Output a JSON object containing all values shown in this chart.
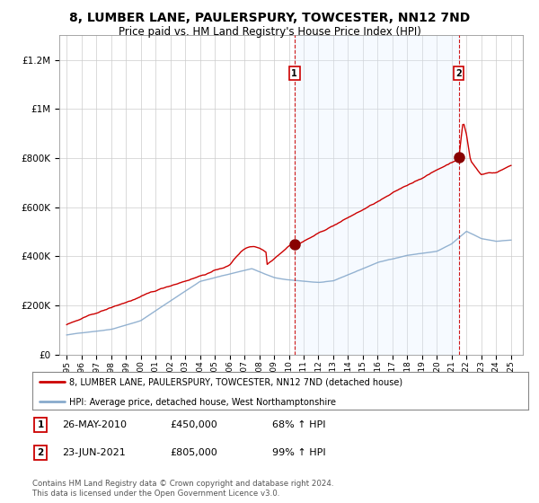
{
  "title": "8, LUMBER LANE, PAULERSPURY, TOWCESTER, NN12 7ND",
  "subtitle": "Price paid vs. HM Land Registry's House Price Index (HPI)",
  "title_fontsize": 10,
  "subtitle_fontsize": 8.5,
  "background_color": "#ffffff",
  "plot_bg_color": "#ffffff",
  "grid_color": "#cccccc",
  "sale1_year": 2010.38,
  "sale1_price": 450000,
  "sale1_label": "1",
  "sale1_display": "26-MAY-2010",
  "sale1_pct": "68%",
  "sale2_year": 2021.47,
  "sale2_price": 805000,
  "sale2_label": "2",
  "sale2_display": "23-JUN-2021",
  "sale2_pct": "99%",
  "red_color": "#cc0000",
  "blue_color": "#88aacc",
  "shade_color": "#ddeeff",
  "dot_color": "#880000",
  "legend_red": "8, LUMBER LANE, PAULERSPURY, TOWCESTER, NN12 7ND (detached house)",
  "legend_blue": "HPI: Average price, detached house, West Northamptonshire",
  "footer1": "Contains HM Land Registry data © Crown copyright and database right 2024.",
  "footer2": "This data is licensed under the Open Government Licence v3.0.",
  "ylim_max": 1300000,
  "xlim_min": 1994.5,
  "xlim_max": 2025.8
}
